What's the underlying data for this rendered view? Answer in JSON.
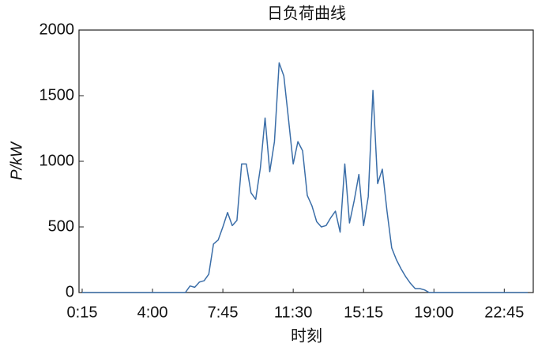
{
  "chart_data": {
    "type": "line",
    "title": "日负荷曲线",
    "x_label": "时刻",
    "y_label": "P/kW",
    "categories": [
      "0:15",
      null,
      null,
      null,
      null,
      null,
      null,
      null,
      null,
      null,
      null,
      null,
      null,
      null,
      null,
      "4:00",
      null,
      null,
      null,
      null,
      null,
      null,
      null,
      null,
      null,
      null,
      null,
      null,
      null,
      null,
      "7:45",
      null,
      null,
      null,
      null,
      null,
      null,
      null,
      null,
      null,
      null,
      null,
      null,
      null,
      null,
      "11:30",
      null,
      null,
      null,
      null,
      null,
      null,
      null,
      null,
      null,
      null,
      null,
      null,
      null,
      null,
      "15:15",
      null,
      null,
      null,
      null,
      null,
      null,
      null,
      null,
      null,
      null,
      null,
      null,
      null,
      null,
      "19:00",
      null,
      null,
      null,
      null,
      null,
      null,
      null,
      null,
      null,
      null,
      null,
      null,
      null,
      null,
      "22:45",
      null,
      null,
      null,
      null,
      null
    ],
    "series": [
      {
        "color": "#3b6ea8",
        "values": [
          0,
          0,
          0,
          0,
          0,
          0,
          0,
          0,
          0,
          0,
          0,
          0,
          0,
          0,
          0,
          0,
          0,
          0,
          0,
          0,
          0,
          0,
          0,
          50,
          40,
          80,
          90,
          140,
          370,
          400,
          500,
          610,
          510,
          550,
          980,
          980,
          760,
          710,
          950,
          1330,
          920,
          1150,
          1750,
          1650,
          1320,
          980,
          1150,
          1080,
          740,
          660,
          540,
          500,
          510,
          570,
          620,
          460,
          980,
          530,
          700,
          900,
          510,
          730,
          1540,
          830,
          940,
          620,
          340,
          250,
          180,
          120,
          70,
          30,
          30,
          20,
          0,
          0,
          0,
          0,
          0,
          0,
          0,
          0,
          0,
          0,
          0,
          0,
          0,
          0,
          0,
          0,
          0,
          0,
          0,
          0,
          0,
          0
        ]
      }
    ],
    "ylim": [
      0,
      2000
    ],
    "yticks": [
      0,
      500,
      1000,
      1500,
      2000
    ]
  }
}
